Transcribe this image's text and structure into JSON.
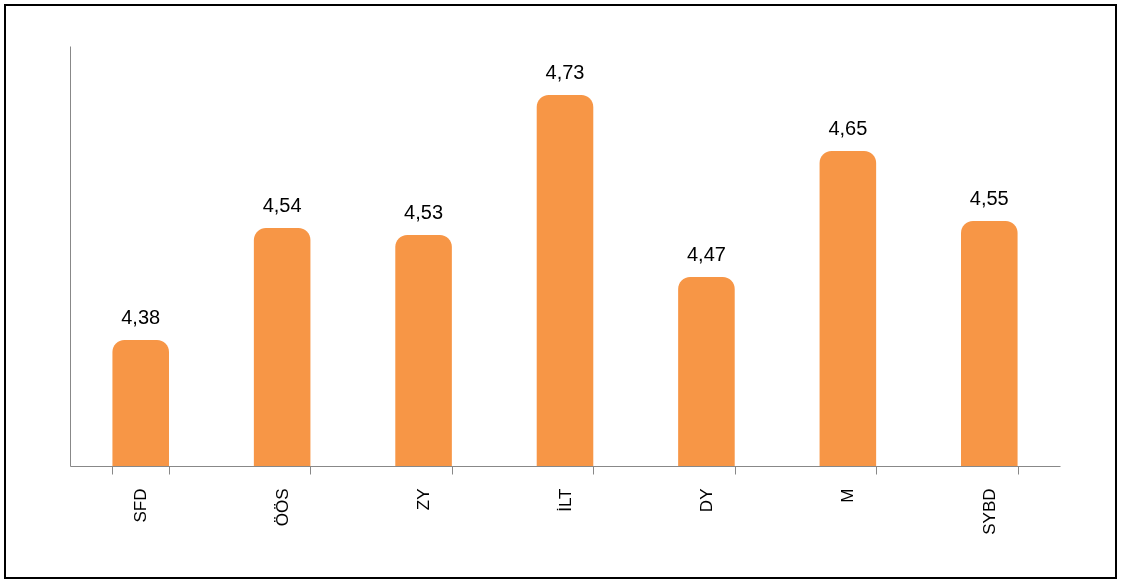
{
  "chart_data": {
    "type": "bar",
    "categories": [
      "SFD",
      "ÖÖS",
      "ZY",
      "İLT",
      "DY",
      "M",
      "SYBD"
    ],
    "values": [
      4.38,
      4.54,
      4.53,
      4.73,
      4.47,
      4.65,
      4.55
    ],
    "value_labels": [
      "4,38",
      "4,54",
      "4,53",
      "4,73",
      "4,47",
      "4,65",
      "4,55"
    ],
    "color": "#f79646",
    "ylim": [
      4.2,
      4.8
    ],
    "tick_labels": "x",
    "grid": false
  }
}
